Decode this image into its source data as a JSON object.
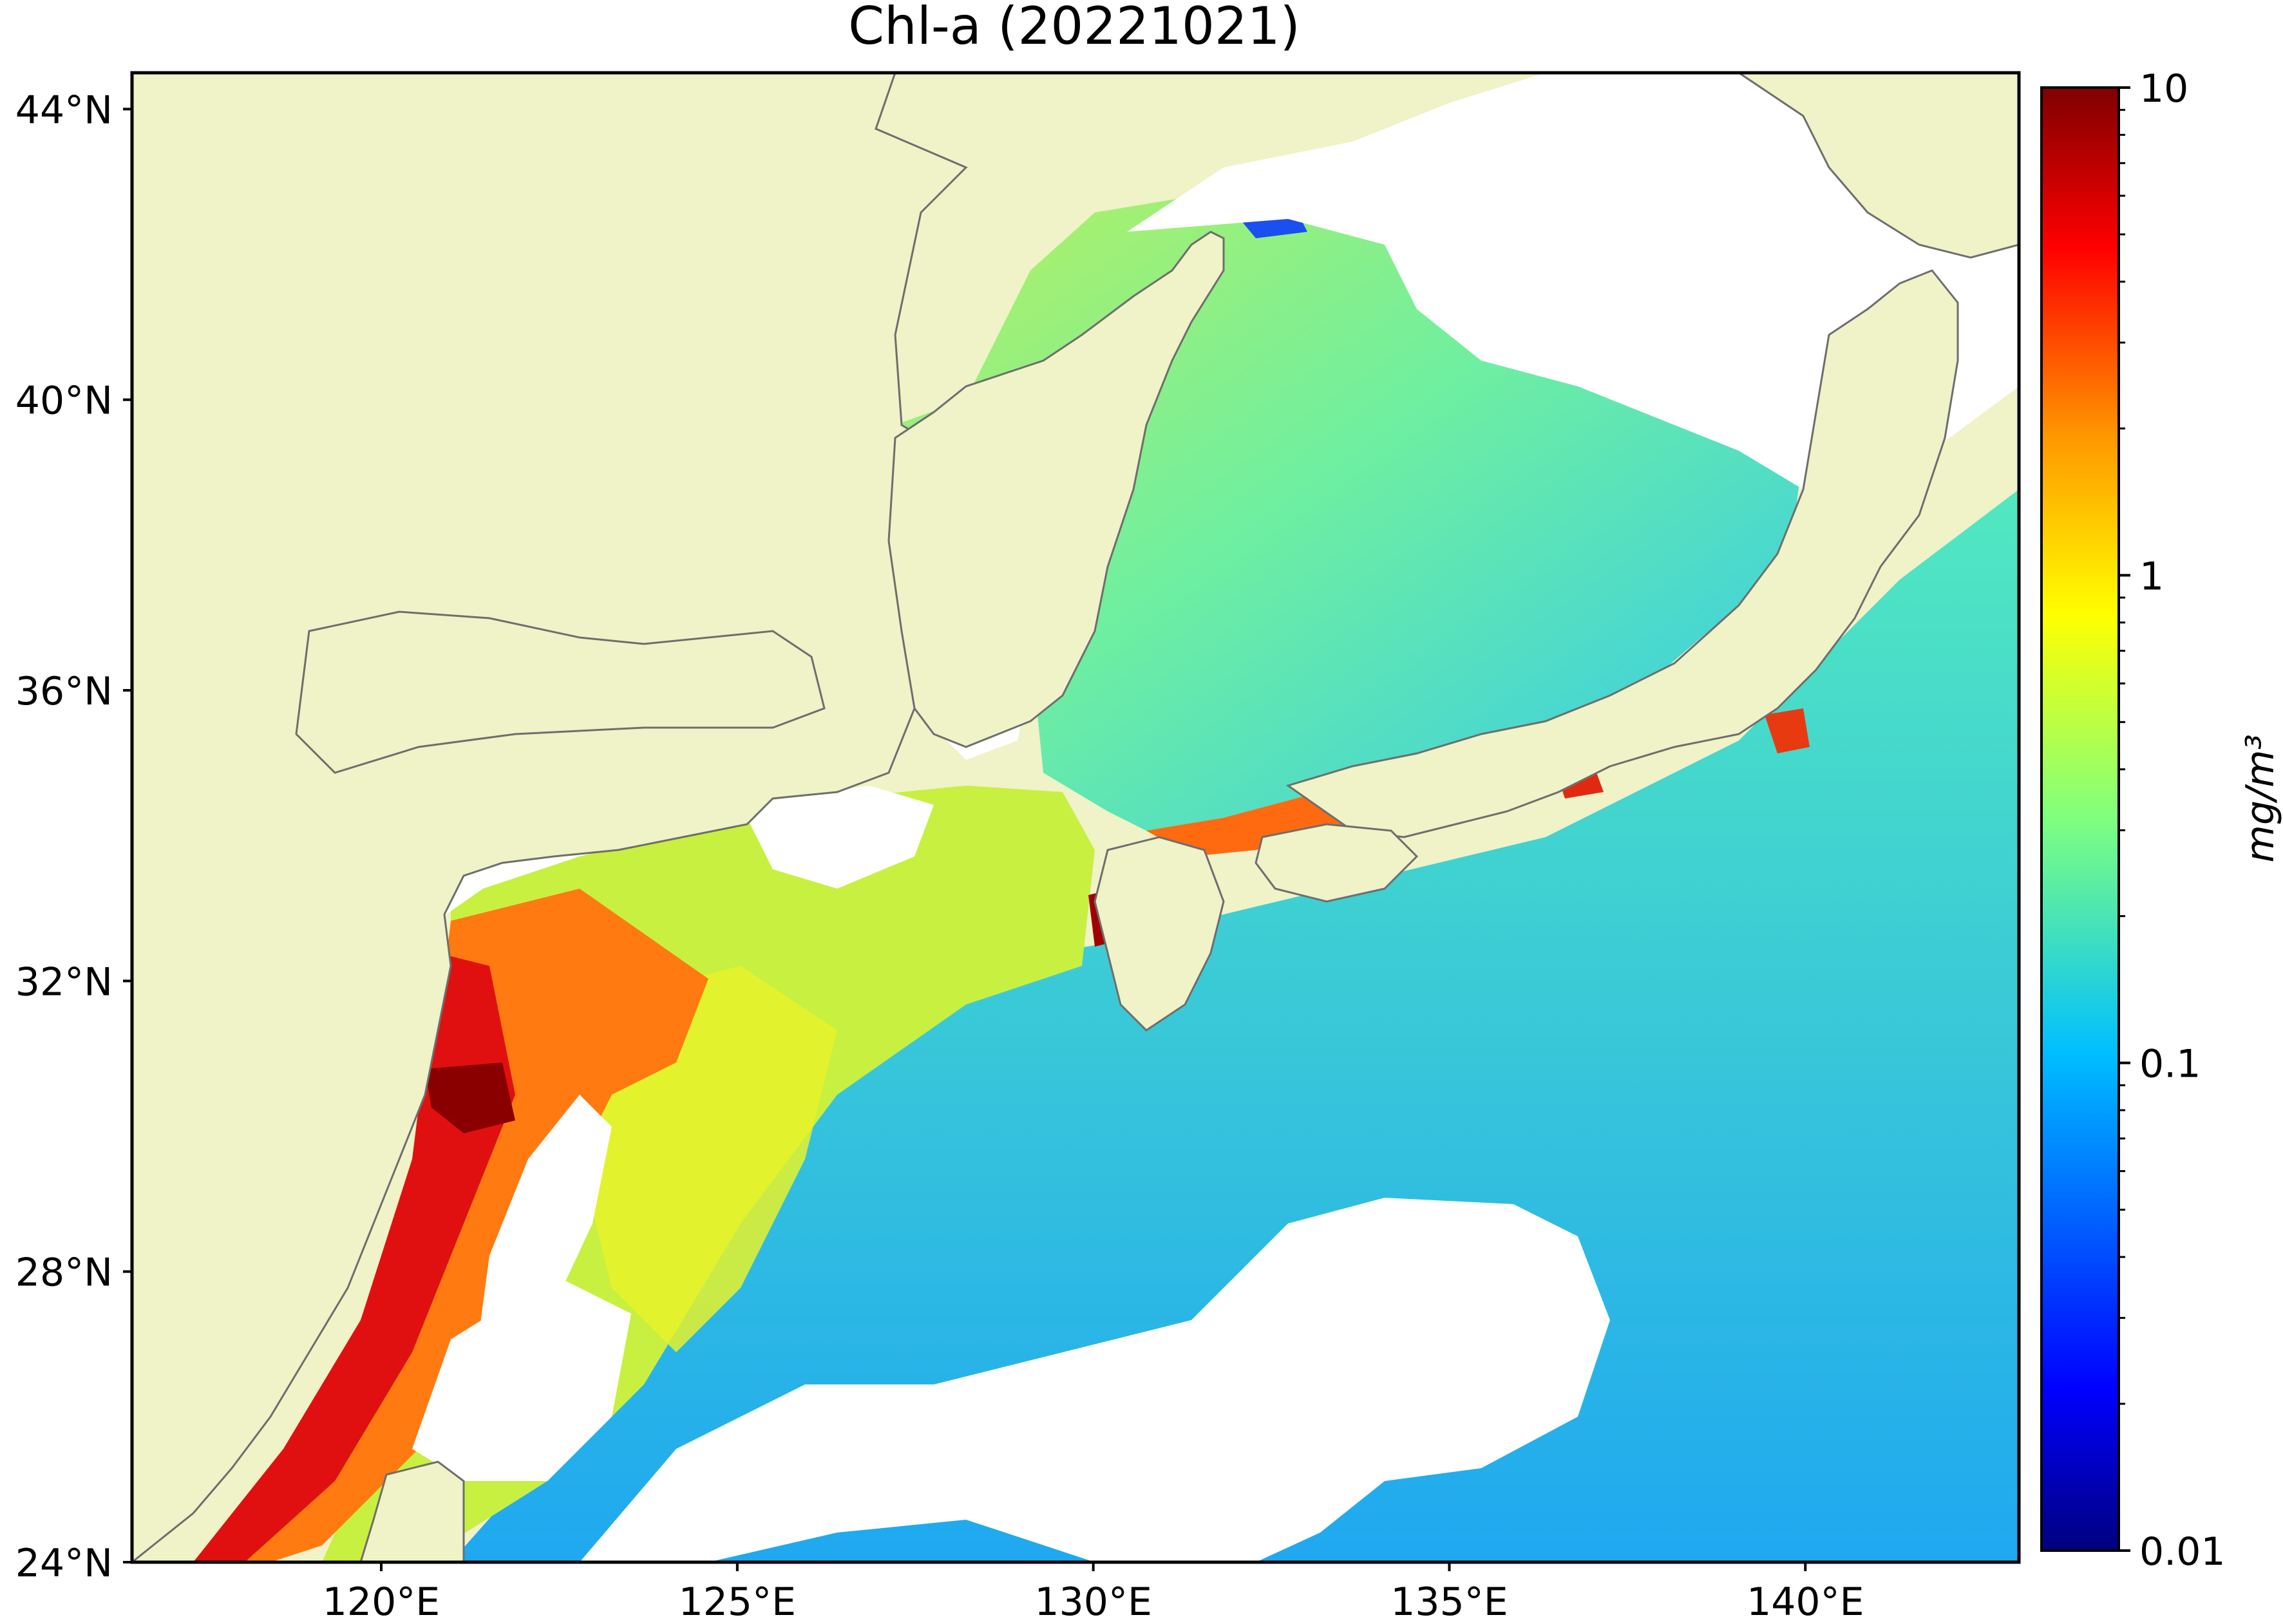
{
  "title": "Chl-a (20221021)",
  "map": {
    "lon_range": [
      116.5,
      143.0
    ],
    "lat_range": [
      24.0,
      44.5
    ],
    "lat_ticks": [
      {
        "value": 44,
        "label": "44°N"
      },
      {
        "value": 40,
        "label": "40°N"
      },
      {
        "value": 36,
        "label": "36°N"
      },
      {
        "value": 32,
        "label": "32°N"
      },
      {
        "value": 28,
        "label": "28°N"
      },
      {
        "value": 24,
        "label": "24°N"
      }
    ],
    "lon_ticks": [
      {
        "value": 120,
        "label": "120°E"
      },
      {
        "value": 125,
        "label": "125°E"
      },
      {
        "value": 130,
        "label": "130°E"
      },
      {
        "value": 135,
        "label": "135°E"
      },
      {
        "value": 140,
        "label": "140°E"
      }
    ],
    "colors": {
      "land": "#f0f2c8",
      "cloud": "#ffffff",
      "coastline": "#6e6e6e"
    }
  },
  "colorbar": {
    "label": "mg/m³",
    "scale": "log",
    "range": [
      0.01,
      10
    ],
    "ticks": [
      {
        "value": 10,
        "label": "10"
      },
      {
        "value": 1,
        "label": "1"
      },
      {
        "value": 0.1,
        "label": "0.1"
      },
      {
        "value": 0.01,
        "label": "0.01"
      }
    ],
    "colormap": "jet",
    "stops": [
      "#00007f",
      "#0000ff",
      "#007fff",
      "#00ffff",
      "#7fff7f",
      "#ffff00",
      "#ff7f00",
      "#ff0000",
      "#7f0000"
    ]
  }
}
